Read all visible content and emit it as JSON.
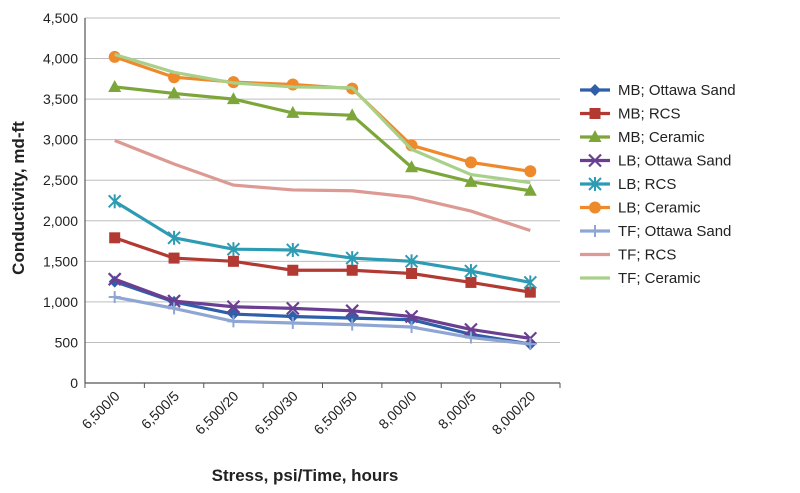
{
  "chart_data": {
    "type": "line",
    "title": "",
    "xlabel": "Stress, psi/Time, hours",
    "ylabel": "Conductivity, md-ft",
    "ylim": [
      0,
      4500
    ],
    "ytick_step": 500,
    "grid": "horizontal",
    "legend": "right",
    "categories": [
      "6,500/0",
      "6,500/5",
      "6,500/20",
      "6,500/30",
      "6,500/50",
      "8,000/0",
      "8,000/5",
      "8,000/20"
    ],
    "series": [
      {
        "name": "MB; Ottawa Sand",
        "color": "#2e5fa8",
        "marker": "diamond",
        "values": [
          1250,
          1000,
          850,
          820,
          800,
          780,
          600,
          480
        ]
      },
      {
        "name": "MB; RCS",
        "color": "#b23a33",
        "marker": "square",
        "values": [
          1790,
          1540,
          1500,
          1390,
          1390,
          1350,
          1240,
          1120
        ]
      },
      {
        "name": "MB; Ceramic",
        "color": "#7da63a",
        "marker": "triangle",
        "values": [
          3650,
          3570,
          3500,
          3330,
          3300,
          2660,
          2480,
          2370
        ]
      },
      {
        "name": "LB; Ottawa Sand",
        "color": "#6a3f92",
        "marker": "x",
        "values": [
          1280,
          1010,
          940,
          920,
          890,
          820,
          660,
          550
        ]
      },
      {
        "name": "LB; RCS",
        "color": "#2d9cb3",
        "marker": "star",
        "values": [
          2240,
          1790,
          1650,
          1640,
          1540,
          1500,
          1380,
          1240
        ]
      },
      {
        "name": "LB; Ceramic",
        "color": "#ee8a2c",
        "marker": "circle",
        "values": [
          4020,
          3770,
          3710,
          3680,
          3630,
          2930,
          2720,
          2610
        ]
      },
      {
        "name": "TF; Ottawa Sand",
        "color": "#8fa6d4",
        "marker": "plus",
        "values": [
          1060,
          920,
          760,
          740,
          720,
          690,
          560,
          480
        ]
      },
      {
        "name": "TF; RCS",
        "color": "#dc9a93",
        "marker": "none",
        "values": [
          2990,
          2700,
          2440,
          2380,
          2370,
          2290,
          2120,
          1880
        ]
      },
      {
        "name": "TF; Ceramic",
        "color": "#a9d08a",
        "marker": "none",
        "values": [
          4050,
          3830,
          3700,
          3650,
          3640,
          2880,
          2570,
          2470
        ]
      }
    ]
  }
}
